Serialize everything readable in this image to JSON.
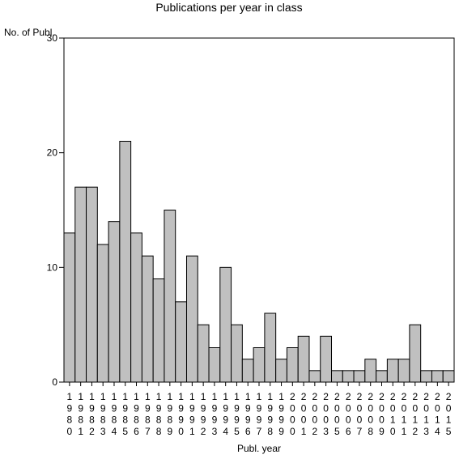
{
  "chart_data": {
    "type": "bar",
    "title": "Publications per year in class",
    "ylabel": "No. of Publ.",
    "xlabel": "Publ. year",
    "ylim": [
      0,
      30
    ],
    "yticks": [
      0,
      10,
      20,
      30
    ],
    "grid": false,
    "bar_color": "#c0c0c0",
    "categories": [
      "1980",
      "1981",
      "1982",
      "1983",
      "1984",
      "1985",
      "1986",
      "1987",
      "1988",
      "1989",
      "1990",
      "1991",
      "1992",
      "1993",
      "1994",
      "1995",
      "1996",
      "1997",
      "1998",
      "1999",
      "2000",
      "2001",
      "2002",
      "2003",
      "2005",
      "2006",
      "2007",
      "2008",
      "2009",
      "2010",
      "2011",
      "2012",
      "2013",
      "2014",
      "2015"
    ],
    "values": [
      13,
      17,
      17,
      12,
      14,
      21,
      13,
      11,
      9,
      15,
      7,
      11,
      5,
      3,
      10,
      5,
      2,
      3,
      6,
      2,
      3,
      4,
      1,
      4,
      1,
      1,
      1,
      2,
      1,
      2,
      2,
      5,
      1,
      1,
      1
    ]
  }
}
